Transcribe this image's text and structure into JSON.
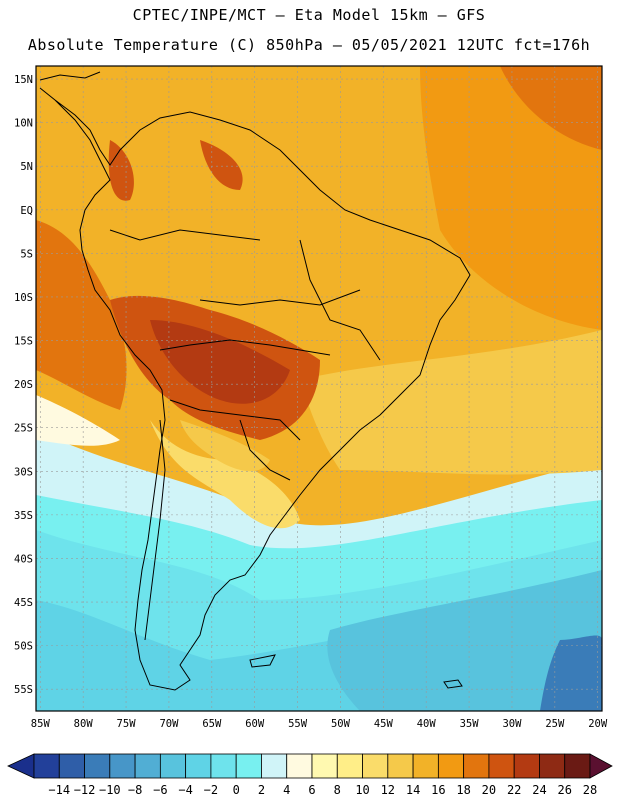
{
  "header": {
    "line1": "CPTEC/INPE/MCT –  Eta Model 15km – GFS",
    "line2": "Absolute Temperature (C) 850hPa – 05/05/2021 12UTC fct=176h"
  },
  "map": {
    "lat_labels": [
      "15N",
      "10N",
      "5N",
      "EQ",
      "5S",
      "10S",
      "15S",
      "20S",
      "25S",
      "30S",
      "35S",
      "40S",
      "45S",
      "50S",
      "55S"
    ],
    "lon_labels": [
      "85W",
      "80W",
      "75W",
      "70W",
      "65W",
      "60W",
      "55W",
      "50W",
      "45W",
      "40W",
      "35W",
      "30W",
      "25W",
      "20W"
    ],
    "extent": {
      "lon_min": -85.5,
      "lon_max": -19.5,
      "lat_min": -57.5,
      "lat_max": 16.5
    }
  },
  "colorbar": {
    "labels": [
      "-14",
      "-12",
      "-10",
      "-8",
      "-6",
      "-4",
      "-2",
      "0",
      "2",
      "4",
      "6",
      "8",
      "10",
      "12",
      "14",
      "16",
      "18",
      "20",
      "22",
      "24",
      "26",
      "28"
    ],
    "colors": [
      "#22409a",
      "#2f5ea8",
      "#3a7cb8",
      "#4796c8",
      "#51aed4",
      "#58c3dd",
      "#5fd3e6",
      "#6ee3ec",
      "#78f0f0",
      "#d0f4f8",
      "#fffae0",
      "#fff9b0",
      "#ffee88",
      "#fadc6a",
      "#f5c94a",
      "#f2b228",
      "#f29a12",
      "#e2750e",
      "#cf5410",
      "#b33a12",
      "#8e2a14",
      "#6a1a14"
    ],
    "low_arrow_color": "#1a2f8c",
    "high_arrow_color": "#5a1030"
  }
}
